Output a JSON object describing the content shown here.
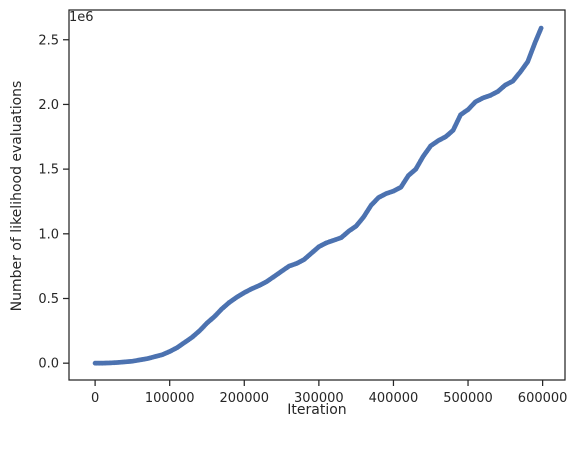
{
  "colors": {
    "marker": "#4c72b0",
    "axis": "#262626",
    "background": "#ffffff"
  },
  "chart_data": {
    "type": "scatter",
    "title": "",
    "xlabel": "Iteration",
    "ylabel": "Number of likelihood evaluations",
    "y_offset_label": "1e6",
    "xlim": [
      -35000,
      630000
    ],
    "ylim": [
      -0.13,
      2.73
    ],
    "x_ticks": [
      0,
      100000,
      200000,
      300000,
      400000,
      500000,
      600000
    ],
    "x_tick_labels": [
      "0",
      "100000",
      "200000",
      "300000",
      "400000",
      "500000",
      "600000"
    ],
    "y_ticks": [
      0.0,
      0.5,
      1.0,
      1.5,
      2.0,
      2.5
    ],
    "y_tick_labels": [
      "0.0",
      "0.5",
      "1.0",
      "1.5",
      "2.0",
      "2.5"
    ],
    "grid": false,
    "legend": false,
    "series": [
      {
        "x": [
          0,
          10000,
          20000,
          30000,
          40000,
          50000,
          60000,
          70000,
          80000,
          90000,
          100000,
          110000,
          120000,
          130000,
          140000,
          150000,
          160000,
          170000,
          180000,
          190000,
          200000,
          210000,
          220000,
          230000,
          240000,
          250000,
          260000,
          270000,
          280000,
          290000,
          300000,
          310000,
          320000,
          330000,
          340000,
          350000,
          360000,
          370000,
          380000,
          390000,
          400000,
          410000,
          420000,
          430000,
          440000,
          450000,
          460000,
          470000,
          480000,
          490000,
          500000,
          510000,
          520000,
          530000,
          540000,
          550000,
          560000,
          570000,
          580000,
          590000,
          598000
        ],
        "y": [
          0.0,
          0.0,
          0.002,
          0.005,
          0.01,
          0.015,
          0.025,
          0.035,
          0.05,
          0.065,
          0.09,
          0.12,
          0.16,
          0.2,
          0.25,
          0.31,
          0.36,
          0.42,
          0.47,
          0.51,
          0.545,
          0.575,
          0.6,
          0.63,
          0.67,
          0.71,
          0.75,
          0.77,
          0.8,
          0.85,
          0.9,
          0.93,
          0.95,
          0.97,
          1.02,
          1.06,
          1.13,
          1.22,
          1.28,
          1.31,
          1.33,
          1.36,
          1.45,
          1.5,
          1.6,
          1.68,
          1.72,
          1.75,
          1.8,
          1.92,
          1.96,
          2.02,
          2.05,
          2.07,
          2.1,
          2.15,
          2.18,
          2.25,
          2.33,
          2.48,
          2.59
        ]
      }
    ]
  }
}
